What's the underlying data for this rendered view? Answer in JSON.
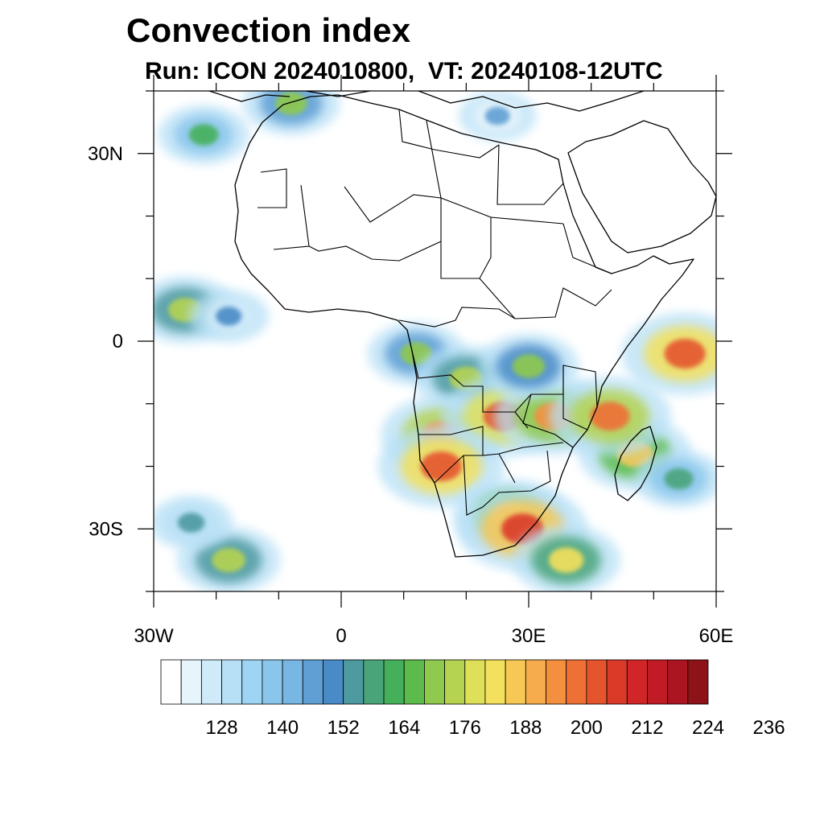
{
  "title": "Convection index",
  "subtitle": "Run: ICON 2024010800,  VT: 20240108-12UTC",
  "map": {
    "lon_range": [
      -30,
      60
    ],
    "lat_range": [
      -40,
      40
    ],
    "lat_ticks": [
      {
        "value": 30,
        "label": "30N"
      },
      {
        "value": 0,
        "label": "0"
      },
      {
        "value": -30,
        "label": "30S"
      }
    ],
    "lon_ticks": [
      {
        "value": -30,
        "label": "30W"
      },
      {
        "value": 0,
        "label": "0"
      },
      {
        "value": 30,
        "label": "30E"
      },
      {
        "value": 60,
        "label": "60E"
      }
    ],
    "minor_lat_step": 10,
    "minor_lon_step": 10
  },
  "colorbar": {
    "colors": [
      "#ffffff",
      "#e6f4fc",
      "#cfeaf8",
      "#b7e0f6",
      "#9ed5f4",
      "#8ac6ec",
      "#78b6e3",
      "#5f9fd4",
      "#4a8bc7",
      "#4d9aa0",
      "#4aa47a",
      "#45b05a",
      "#5cbb4a",
      "#8fc94e",
      "#b5d351",
      "#dfe05a",
      "#f3e05c",
      "#f7c856",
      "#f6ac4c",
      "#f48f3f",
      "#ee7035",
      "#e5552d",
      "#db3a29",
      "#d12527",
      "#c11b26",
      "#aa1521",
      "#8e1318"
    ],
    "labels": [
      "128",
      "140",
      "152",
      "164",
      "176",
      "188",
      "200",
      "212",
      "224",
      "236"
    ]
  },
  "fields": [
    {
      "name": "west-africa-coast",
      "lon": -25,
      "lat": 5,
      "value": 176
    },
    {
      "name": "west-africa-band",
      "lon": -18,
      "lat": 4,
      "value": 146
    },
    {
      "name": "gulf-of-guinea",
      "lon": 12,
      "lat": -2,
      "value": 168
    },
    {
      "name": "congo-basin",
      "lon": 20,
      "lat": -6,
      "value": 176
    },
    {
      "name": "angola-plateau",
      "lon": 16,
      "lat": -15,
      "value": 198
    },
    {
      "name": "zambia",
      "lon": 26,
      "lat": -12,
      "value": 204
    },
    {
      "name": "lake-malawi",
      "lon": 34,
      "lat": -12,
      "value": 196
    },
    {
      "name": "east-africa-rift",
      "lon": 30,
      "lat": -4,
      "value": 172
    },
    {
      "name": "namibia",
      "lon": 16,
      "lat": -20,
      "value": 206
    },
    {
      "name": "south-africa",
      "lon": 27,
      "lat": -28,
      "value": 190
    },
    {
      "name": "lesotho-natal",
      "lon": 29,
      "lat": -30,
      "value": 210
    },
    {
      "name": "natal-coast-plume",
      "lon": 36,
      "lat": -35,
      "value": 182
    },
    {
      "name": "madagascar",
      "lon": 47,
      "lat": -18,
      "value": 188
    },
    {
      "name": "mozambique-channel",
      "lon": 43,
      "lat": -12,
      "value": 200
    },
    {
      "name": "indian-ocean-band",
      "lon": 55,
      "lat": -2,
      "value": 206
    },
    {
      "name": "indian-ocean-south",
      "lon": 54,
      "lat": -22,
      "value": 158
    },
    {
      "name": "atlantic-south-cloud",
      "lon": -18,
      "lat": -35,
      "value": 176
    },
    {
      "name": "atlantic-south-band",
      "lon": -24,
      "lat": -29,
      "value": 150
    },
    {
      "name": "north-atlantic",
      "lon": -22,
      "lat": 33,
      "value": 160
    },
    {
      "name": "mediterranean",
      "lon": -8,
      "lat": 38,
      "value": 168
    },
    {
      "name": "eastern-med",
      "lon": 25,
      "lat": 36,
      "value": 142
    }
  ]
}
